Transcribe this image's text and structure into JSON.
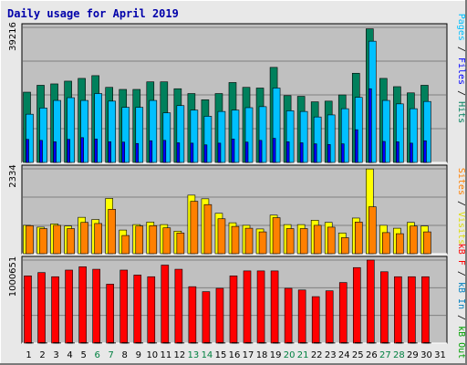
{
  "title": "Daily usage for April 2019",
  "colors": {
    "hits": "#00805c",
    "files": "#0000ff",
    "pages": "#00c0ff",
    "visits": "#ffff00",
    "sites": "#ff8000",
    "kbin": "#0080c0",
    "kbout": "#00a000",
    "kbf": "#ff0000",
    "weekend": "#008040",
    "weekday": "#000000"
  },
  "right_labels": {
    "top": [
      {
        "text": "Pages",
        "color": "#00c0ff"
      },
      {
        "text": " / ",
        "color": "#000000"
      },
      {
        "text": "Files",
        "color": "#0000ff"
      },
      {
        "text": " / ",
        "color": "#000000"
      },
      {
        "text": "Hits",
        "color": "#00805c"
      }
    ],
    "mid": [
      {
        "text": "Sites",
        "color": "#ff8000"
      },
      {
        "text": " / ",
        "color": "#000000"
      },
      {
        "text": "Visits",
        "color": "#dddd00"
      }
    ],
    "bot": [
      {
        "text": "kB F",
        "color": "#ff0000"
      },
      {
        "text": " / ",
        "color": "#000000"
      },
      {
        "text": "kB In",
        "color": "#0080c0"
      },
      {
        "text": " / ",
        "color": "#000000"
      },
      {
        "text": "kB Out",
        "color": "#00a000"
      }
    ]
  },
  "chart_data": {
    "type": "bar",
    "x": [
      "1",
      "2",
      "3",
      "4",
      "5",
      "6",
      "7",
      "8",
      "9",
      "10",
      "11",
      "12",
      "13",
      "14",
      "15",
      "16",
      "17",
      "18",
      "19",
      "20",
      "21",
      "22",
      "23",
      "24",
      "25",
      "26",
      "27",
      "28",
      "29",
      "30",
      "31"
    ],
    "weekend_days": [
      6,
      7,
      13,
      14,
      20,
      21,
      27,
      28
    ],
    "panels": [
      {
        "name": "top",
        "ymax_label": "39216",
        "ymax": 39216,
        "series": [
          {
            "name": "Hits",
            "values": [
              20400,
              22400,
              22800,
              23600,
              24400,
              25200,
              21800,
              21200,
              21200,
              23400,
              23400,
              21400,
              20000,
              18200,
              20000,
              23200,
              21800,
              21600,
              27600,
              19400,
              19200,
              17600,
              17800,
              19600,
              25900,
              38800,
              24400,
              22000,
              20200,
              22400,
              0
            ]
          },
          {
            "name": "Files",
            "values": [
              6700,
              6400,
              6000,
              6700,
              7200,
              6800,
              6000,
              5900,
              5500,
              6300,
              6400,
              5700,
              5600,
              5100,
              5600,
              6800,
              5900,
              6400,
              7000,
              6000,
              5700,
              5400,
              5200,
              5400,
              9500,
              21400,
              6100,
              6000,
              5600,
              6300,
              0
            ]
          },
          {
            "name": "Pages",
            "values": [
              14000,
              15800,
              18000,
              18800,
              18000,
              20000,
              17800,
              16000,
              16000,
              18000,
              14400,
              16500,
              15200,
              13400,
              14800,
              15200,
              15900,
              16200,
              21600,
              15000,
              14800,
              13200,
              13800,
              15600,
              18900,
              35200,
              18000,
              17000,
              15600,
              17700,
              0
            ]
          }
        ]
      },
      {
        "name": "mid",
        "ymax_label": "2334",
        "ymax": 2334,
        "series": [
          {
            "name": "Visits",
            "values": [
              780,
              730,
              820,
              760,
              1000,
              940,
              1520,
              650,
              800,
              870,
              800,
              620,
              1610,
              1510,
              1110,
              850,
              780,
              680,
              1060,
              800,
              800,
              920,
              860,
              570,
              980,
              2330,
              780,
              700,
              860,
              760,
              0
            ]
          },
          {
            "name": "Sites",
            "values": [
              770,
              690,
              780,
              690,
              860,
              830,
              1220,
              500,
              760,
              770,
              710,
              570,
              1440,
              1350,
              960,
              750,
              700,
              600,
              990,
              690,
              690,
              780,
              730,
              440,
              870,
              1290,
              580,
              550,
              760,
              600,
              0
            ]
          }
        ]
      },
      {
        "name": "bot",
        "ymax_label": "1000651",
        "ymax": 1000651,
        "series": [
          {
            "name": "kB F",
            "values": [
              810000,
              850000,
              800000,
              880000,
              920000,
              890000,
              710000,
              880000,
              820000,
              800000,
              940000,
              890000,
              680000,
              620000,
              660000,
              810000,
              870000,
              870000,
              870000,
              660000,
              640000,
              560000,
              630000,
              730000,
              910000,
              1000651,
              860000,
              800000,
              800000,
              800000,
              0
            ]
          },
          {
            "name": "kB In",
            "values": [
              6000,
              6000,
              6000,
              6000,
              6000,
              6000,
              6000,
              6000,
              6000,
              6000,
              6000,
              6000,
              6000,
              6000,
              6000,
              6000,
              6000,
              6000,
              6000,
              6000,
              6000,
              6000,
              6000,
              6000,
              6000,
              6000,
              6000,
              6000,
              6000,
              6000,
              0
            ]
          },
          {
            "name": "kB Out",
            "values": [
              2000,
              2000,
              2000,
              2000,
              2000,
              2000,
              2000,
              2000,
              2000,
              2000,
              2000,
              2000,
              2000,
              2000,
              2000,
              2000,
              2000,
              2000,
              2000,
              2000,
              2000,
              2000,
              2000,
              2000,
              2000,
              2000,
              2000,
              2000,
              2000,
              2000,
              0
            ]
          }
        ]
      }
    ]
  }
}
